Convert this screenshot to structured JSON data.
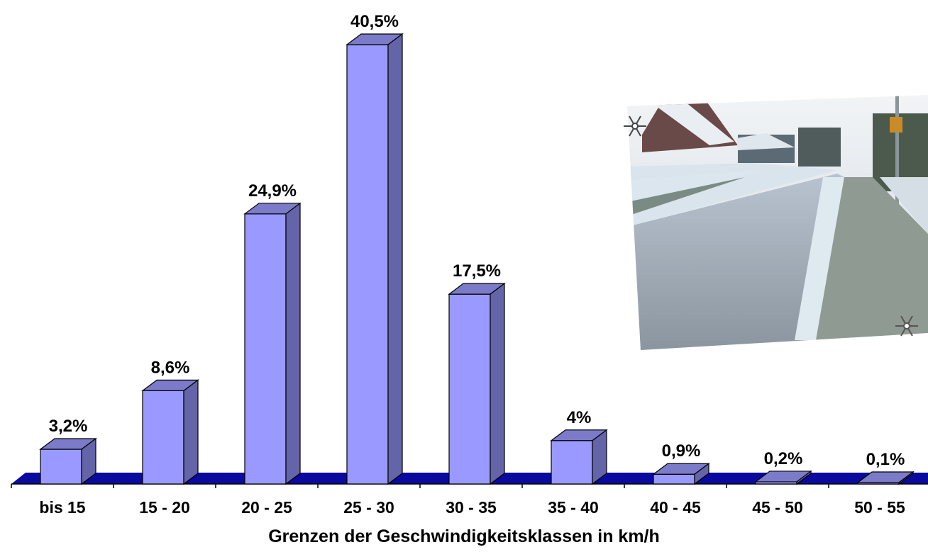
{
  "chart_data": {
    "type": "bar",
    "style": "3d-column",
    "categories": [
      "bis 15",
      "15 - 20",
      "20 - 25",
      "25 - 30",
      "30 - 35",
      "35 - 40",
      "40 - 45",
      "45 - 50",
      "50 - 55"
    ],
    "values": [
      3.2,
      8.6,
      24.9,
      40.5,
      17.5,
      4,
      0.9,
      0.2,
      0.1
    ],
    "data_labels": [
      "3,2%",
      "8,6%",
      "24,9%",
      "40,5%",
      "17,5%",
      "4%",
      "0,9%",
      "0,2%",
      "0,1%"
    ],
    "title": "",
    "xlabel": "Grenzen der Geschwindigkeitsklassen in km/h",
    "ylabel": "",
    "unit": "%",
    "ylim": [
      0,
      40.5
    ],
    "grid": false,
    "legend": "none"
  },
  "colors": {
    "bar_front": "#9999ff",
    "bar_top": "#7b7bc9",
    "bar_side": "#6464a8",
    "floor": "#0a0a9e",
    "axis": "#000000"
  },
  "photo": {
    "subject": "snowy residential street with speed display sign",
    "icons": [
      "snowflake-icon",
      "snowflake-icon"
    ]
  }
}
